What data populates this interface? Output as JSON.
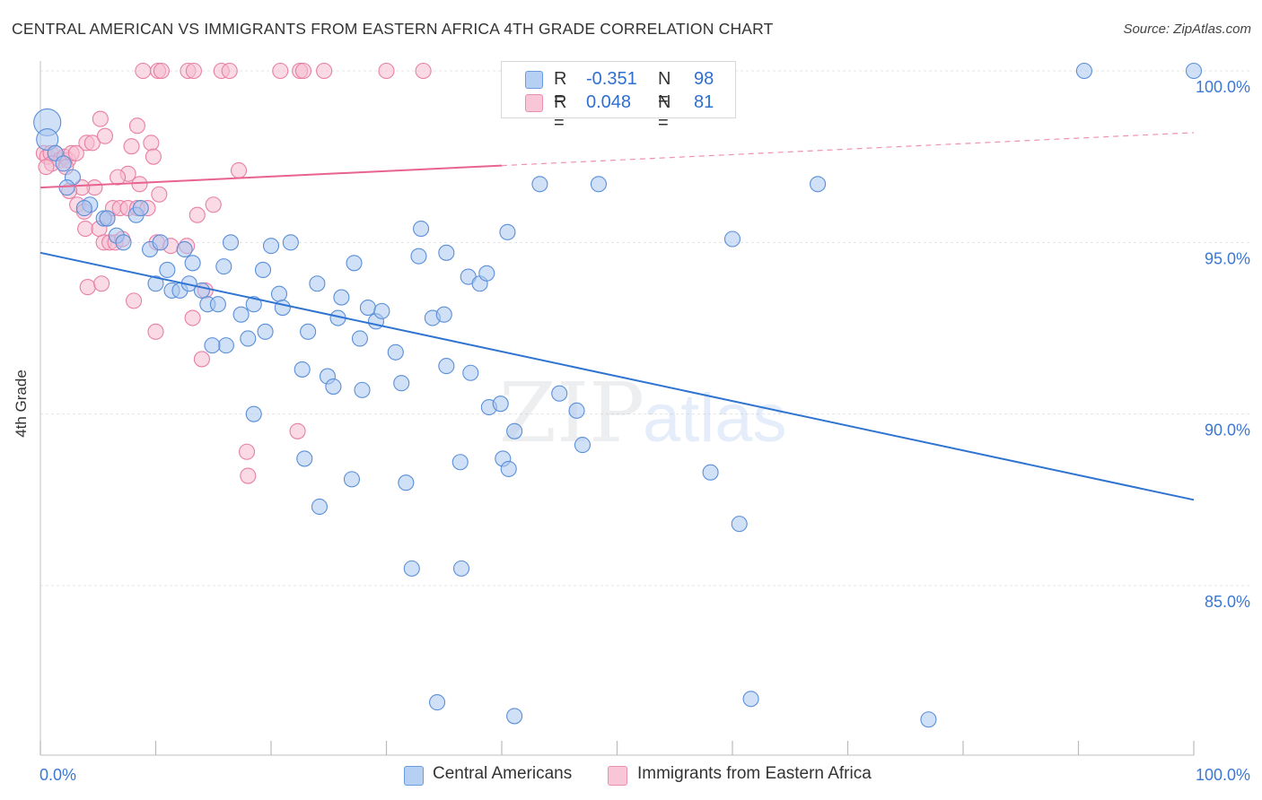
{
  "header": {
    "title": "CENTRAL AMERICAN VS IMMIGRANTS FROM EASTERN AFRICA 4TH GRADE CORRELATION CHART",
    "source": "Source: ZipAtlas.com"
  },
  "watermark": {
    "zip": "ZIP",
    "atlas": "atlas"
  },
  "legend_top": {
    "rows": [
      {
        "r_label": "R =",
        "r_value": "-0.351",
        "n_label": "N =",
        "n_value": "98"
      },
      {
        "r_label": "R =",
        "r_value": "0.048",
        "n_label": "N =",
        "n_value": "81"
      }
    ]
  },
  "legend_bottom": {
    "items": [
      {
        "label": "Central Americans"
      },
      {
        "label": "Immigrants from Eastern Africa"
      }
    ]
  },
  "colors": {
    "blue_fill": "#a9c7f0",
    "blue_stroke": "#5a8fd8",
    "blue_line": "#2f74d0",
    "pink_fill": "#f6bcd0",
    "pink_stroke": "#e87fa5",
    "pink_line": "#e8638f",
    "tick_label": "#3a78d4",
    "grid": "#e4e4e4"
  },
  "chart_data": {
    "type": "scatter",
    "title": "CENTRAL AMERICAN VS IMMIGRANTS FROM EASTERN AFRICA 4TH GRADE CORRELATION CHART",
    "xlabel": "",
    "ylabel": "4th Grade",
    "xlim": [
      0,
      100
    ],
    "ylim": [
      80.3,
      100.9
    ],
    "x_tick_labels": [
      "0.0%",
      "100.0%"
    ],
    "y_ticks": [
      {
        "value": 100,
        "label": "100.0%"
      },
      {
        "value": 95,
        "label": "95.0%"
      },
      {
        "value": 90,
        "label": "90.0%"
      },
      {
        "value": 85,
        "label": "85.0%"
      }
    ],
    "grid": true,
    "legend_position": "bottom",
    "series": [
      {
        "name": "Central Americans",
        "R": -0.351,
        "N": 98,
        "trend": {
          "x": [
            0,
            100
          ],
          "y": [
            94.7,
            87.5
          ],
          "dashed_from": null
        },
        "points": [
          [
            0.6,
            98.5
          ],
          [
            0.6,
            98.0
          ],
          [
            1.3,
            97.6
          ],
          [
            2.0,
            97.3
          ],
          [
            2.8,
            96.9
          ],
          [
            2.3,
            96.6
          ],
          [
            4.3,
            96.1
          ],
          [
            3.8,
            96.0
          ],
          [
            5.5,
            95.7
          ],
          [
            5.8,
            95.7
          ],
          [
            8.3,
            95.8
          ],
          [
            8.7,
            96.0
          ],
          [
            6.6,
            95.2
          ],
          [
            7.2,
            95.0
          ],
          [
            9.5,
            94.8
          ],
          [
            10.4,
            95.0
          ],
          [
            12.5,
            94.8
          ],
          [
            16.5,
            95.0
          ],
          [
            20.0,
            94.9
          ],
          [
            21.7,
            95.0
          ],
          [
            10.0,
            93.8
          ],
          [
            11.0,
            94.2
          ],
          [
            11.4,
            93.6
          ],
          [
            12.1,
            93.6
          ],
          [
            12.9,
            93.8
          ],
          [
            13.2,
            94.4
          ],
          [
            14.0,
            93.6
          ],
          [
            14.5,
            93.2
          ],
          [
            15.4,
            93.2
          ],
          [
            15.9,
            94.3
          ],
          [
            19.3,
            94.2
          ],
          [
            17.4,
            92.9
          ],
          [
            18.5,
            93.2
          ],
          [
            20.7,
            93.5
          ],
          [
            21.0,
            93.1
          ],
          [
            24.0,
            93.8
          ],
          [
            27.2,
            94.4
          ],
          [
            26.1,
            93.4
          ],
          [
            25.8,
            92.8
          ],
          [
            28.4,
            93.1
          ],
          [
            29.1,
            92.7
          ],
          [
            29.6,
            93.0
          ],
          [
            23.2,
            92.4
          ],
          [
            19.5,
            92.4
          ],
          [
            18.0,
            92.2
          ],
          [
            16.1,
            92.0
          ],
          [
            14.9,
            92.0
          ],
          [
            27.7,
            92.2
          ],
          [
            32.8,
            94.6
          ],
          [
            30.8,
            91.8
          ],
          [
            31.3,
            90.9
          ],
          [
            34.0,
            92.8
          ],
          [
            35.0,
            92.9
          ],
          [
            35.2,
            91.4
          ],
          [
            37.1,
            94.0
          ],
          [
            38.1,
            93.8
          ],
          [
            38.7,
            94.1
          ],
          [
            37.3,
            91.2
          ],
          [
            22.7,
            91.3
          ],
          [
            24.9,
            91.1
          ],
          [
            25.4,
            90.8
          ],
          [
            27.9,
            90.7
          ],
          [
            33.0,
            95.4
          ],
          [
            35.2,
            94.7
          ],
          [
            40.5,
            95.3
          ],
          [
            43.3,
            96.7
          ],
          [
            48.4,
            96.7
          ],
          [
            60.0,
            95.1
          ],
          [
            67.4,
            96.7
          ],
          [
            90.5,
            100.0
          ],
          [
            100.0,
            100.0
          ],
          [
            18.5,
            90.0
          ],
          [
            38.9,
            90.2
          ],
          [
            39.9,
            90.3
          ],
          [
            41.1,
            89.5
          ],
          [
            45.0,
            90.6
          ],
          [
            46.5,
            90.1
          ],
          [
            47.0,
            89.1
          ],
          [
            22.9,
            88.7
          ],
          [
            27.0,
            88.1
          ],
          [
            31.7,
            88.0
          ],
          [
            36.4,
            88.6
          ],
          [
            40.1,
            88.7
          ],
          [
            40.6,
            88.4
          ],
          [
            24.2,
            87.3
          ],
          [
            58.1,
            88.3
          ],
          [
            60.6,
            86.8
          ],
          [
            32.2,
            85.5
          ],
          [
            36.5,
            85.5
          ],
          [
            34.4,
            81.6
          ],
          [
            41.1,
            81.2
          ],
          [
            61.6,
            81.7
          ],
          [
            77.0,
            81.1
          ]
        ]
      },
      {
        "name": "Immigrants from Eastern Africa",
        "R": 0.048,
        "N": 81,
        "trend": {
          "x": [
            0,
            100
          ],
          "y": [
            96.6,
            98.2
          ],
          "dashed_from": 40
        },
        "points": [
          [
            8.9,
            100.0
          ],
          [
            10.2,
            100.0
          ],
          [
            10.5,
            100.0
          ],
          [
            12.8,
            100.0
          ],
          [
            13.3,
            100.0
          ],
          [
            15.7,
            100.0
          ],
          [
            16.4,
            100.0
          ],
          [
            20.8,
            100.0
          ],
          [
            22.5,
            100.0
          ],
          [
            22.8,
            100.0
          ],
          [
            24.6,
            100.0
          ],
          [
            30.0,
            100.0
          ],
          [
            33.2,
            100.0
          ],
          [
            0.3,
            97.6
          ],
          [
            0.6,
            97.5
          ],
          [
            0.9,
            97.6
          ],
          [
            1.3,
            97.6
          ],
          [
            1.7,
            97.4
          ],
          [
            2.1,
            97.5
          ],
          [
            2.4,
            97.4
          ],
          [
            2.7,
            97.6
          ],
          [
            1.0,
            97.3
          ],
          [
            0.5,
            97.2
          ],
          [
            2.2,
            97.2
          ],
          [
            4.0,
            97.9
          ],
          [
            4.5,
            97.9
          ],
          [
            3.1,
            97.6
          ],
          [
            5.6,
            98.1
          ],
          [
            5.2,
            98.6
          ],
          [
            8.4,
            98.4
          ],
          [
            7.9,
            97.8
          ],
          [
            9.6,
            97.9
          ],
          [
            9.8,
            97.5
          ],
          [
            7.6,
            97.0
          ],
          [
            6.7,
            96.9
          ],
          [
            4.7,
            96.6
          ],
          [
            3.6,
            96.6
          ],
          [
            3.2,
            96.1
          ],
          [
            2.5,
            96.5
          ],
          [
            3.8,
            95.9
          ],
          [
            5.8,
            95.7
          ],
          [
            6.3,
            96.0
          ],
          [
            6.9,
            96.0
          ],
          [
            7.6,
            96.0
          ],
          [
            8.4,
            96.0
          ],
          [
            9.3,
            96.0
          ],
          [
            10.3,
            96.4
          ],
          [
            8.6,
            96.7
          ],
          [
            13.6,
            95.8
          ],
          [
            15.0,
            96.1
          ],
          [
            17.2,
            97.1
          ],
          [
            3.9,
            95.4
          ],
          [
            5.1,
            95.4
          ],
          [
            5.5,
            95.0
          ],
          [
            6.0,
            95.0
          ],
          [
            6.5,
            95.0
          ],
          [
            7.1,
            95.1
          ],
          [
            10.1,
            95.0
          ],
          [
            11.3,
            94.9
          ],
          [
            12.7,
            94.9
          ],
          [
            4.1,
            93.7
          ],
          [
            5.3,
            93.8
          ],
          [
            8.1,
            93.3
          ],
          [
            13.2,
            92.8
          ],
          [
            10.0,
            92.4
          ],
          [
            14.0,
            91.6
          ],
          [
            14.3,
            93.6
          ],
          [
            17.9,
            88.9
          ],
          [
            18.0,
            88.2
          ],
          [
            22.3,
            89.5
          ]
        ]
      }
    ]
  }
}
